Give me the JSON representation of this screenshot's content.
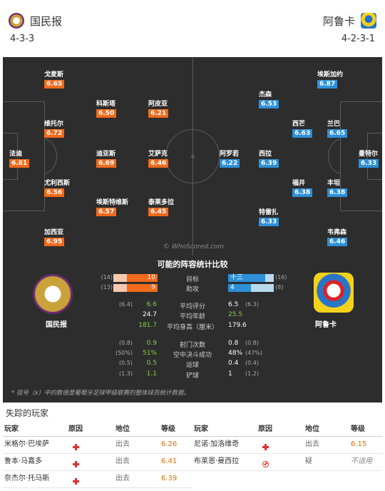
{
  "header": {
    "home": {
      "name": "国民报",
      "formation": "4-3-3",
      "crest_icon": "nacional-crest-icon"
    },
    "away": {
      "name": "阿鲁卡",
      "formation": "4-2-3-1",
      "crest_icon": "arouca-crest-icon"
    }
  },
  "pitch": {
    "watermark": "© WhoScored.com",
    "home_players": [
      {
        "name": "戈麦斯",
        "rating": "6.65"
      },
      {
        "name": "科斯塔",
        "rating": "6.50"
      },
      {
        "name": "阿皮亚",
        "rating": "6.21"
      },
      {
        "name": "维托尔",
        "rating": "6.72"
      },
      {
        "name": "法迪",
        "rating": "6.81"
      },
      {
        "name": "迪亚斯",
        "rating": "6.69"
      },
      {
        "name": "艾萨克",
        "rating": "6.46"
      },
      {
        "name": "尤利西斯",
        "rating": "6.56"
      },
      {
        "name": "埃斯特维斯",
        "rating": "6.57"
      },
      {
        "name": "泰莱多拉",
        "rating": "6.45"
      },
      {
        "name": "加西亚",
        "rating": "6.95"
      }
    ],
    "away_players": [
      {
        "name": "埃斯加约",
        "rating": "6.87"
      },
      {
        "name": "杰森",
        "rating": "6.53"
      },
      {
        "name": "西芒",
        "rating": "6.63"
      },
      {
        "name": "兰巴",
        "rating": "6.65"
      },
      {
        "name": "阿罗若",
        "rating": "6.22"
      },
      {
        "name": "西拉",
        "rating": "6.39"
      },
      {
        "name": "曼特尔",
        "rating": "6.33"
      },
      {
        "name": "福井",
        "rating": "6.38"
      },
      {
        "name": "丰坦",
        "rating": "6.38"
      },
      {
        "name": "特雷扎",
        "rating": "6.33"
      },
      {
        "name": "韦弗森",
        "rating": "6.46"
      }
    ]
  },
  "stats": {
    "title": "可能的阵容统计比较",
    "home_team": "国民报",
    "away_team": "阿鲁卡",
    "bars": [
      {
        "label": "目标",
        "home": "10",
        "home_bracket": "(14)",
        "home_frac": 0.7,
        "away": "十三",
        "away_bracket": "(16)",
        "away_frac": 0.81
      },
      {
        "label": "助攻",
        "home": "9",
        "home_bracket": "(13)",
        "home_frac": 0.7,
        "away": "4",
        "away_bracket": "(8)",
        "away_frac": 0.5
      }
    ],
    "rows": [
      {
        "label": "平均评分",
        "home": "6.6",
        "home_bracket": "(6.4)",
        "home_green": true,
        "away": "6.5",
        "away_bracket": "(6.3)",
        "away_green": false
      },
      {
        "label": "平均年龄",
        "home": "24.7",
        "home_bracket": "",
        "home_green": false,
        "away": "25.5",
        "away_bracket": "",
        "away_green": true
      },
      {
        "label": "平均身高（厘米）",
        "home": "181.7",
        "home_bracket": "",
        "home_green": true,
        "away": "179.6",
        "away_bracket": "",
        "away_green": false
      },
      {
        "label": "射门次数",
        "home": "0.9",
        "home_bracket": "(0.8)",
        "home_green": true,
        "away": "0.8",
        "away_bracket": "(0.8)",
        "away_green": false
      },
      {
        "label": "空中决斗成功",
        "home": "51%",
        "home_bracket": "(50%)",
        "home_green": true,
        "away": "48%",
        "away_bracket": "(47%)",
        "away_green": false
      },
      {
        "label": "运球",
        "home": "0.5",
        "home_bracket": "(0.5)",
        "home_green": true,
        "away": "0.4",
        "away_bracket": "(0.4)",
        "away_green": false
      },
      {
        "label": "铲球",
        "home": "1.1",
        "home_bracket": "(1.3)",
        "home_green": true,
        "away": "1",
        "away_bracket": "(1.2)",
        "away_green": false
      }
    ],
    "footnote": "* 括号（x）中的数值是葡萄牙足球甲级联赛的整体球员统计数据。"
  },
  "missing": {
    "title": "失踪的玩家",
    "headers": {
      "player": "玩家",
      "reason": "原因",
      "status": "地位",
      "rating": "等级"
    },
    "left": [
      {
        "player": "米格尔·巴埃萨",
        "reason_icon": "injury-cross-icon",
        "status": "出去",
        "rating": "6.26"
      },
      {
        "player": "鲁本·马嘉多",
        "reason_icon": "injury-cross-icon",
        "status": "出去",
        "rating": "6.41"
      },
      {
        "player": "奈杰尔·托马斯",
        "reason_icon": "injury-cross-icon",
        "status": "出去",
        "rating": "6.39"
      }
    ],
    "right": [
      {
        "player": "尼诺·加洛维奇",
        "reason_icon": "injury-cross-icon",
        "status": "出去",
        "rating": "6.15"
      },
      {
        "player": "布莱恩·曼西拉",
        "reason_icon": "ban-icon",
        "status": "疑",
        "rating": "不适用"
      }
    ]
  }
}
